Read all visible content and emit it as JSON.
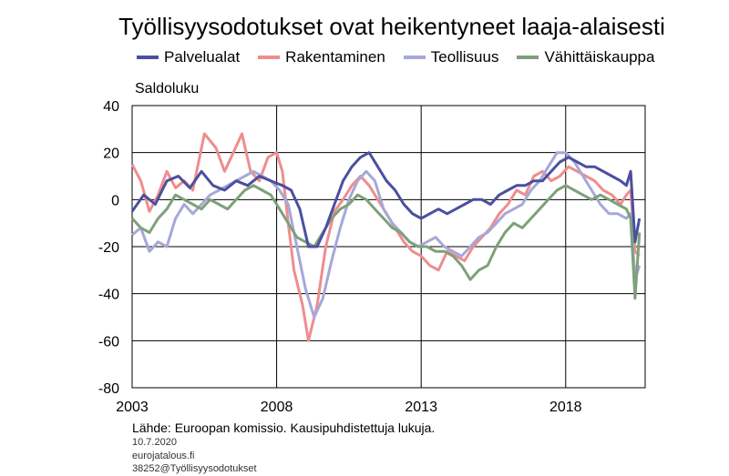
{
  "chart_data": {
    "type": "line",
    "title": "Työllisyysodotukset ovat heikentyneet laaja-alaisesti",
    "ylabel": "Saldoluku",
    "ylim": [
      -80,
      40
    ],
    "yticks": [
      "40",
      "20",
      "0",
      "-20",
      "-40",
      "-60",
      "-80"
    ],
    "ytick_values": [
      40,
      20,
      0,
      -20,
      -40,
      -60,
      -80
    ],
    "xlim": [
      2003,
      2020.75
    ],
    "xticks": [
      "2003",
      "2008",
      "2013",
      "2018"
    ],
    "xtick_values": [
      2003,
      2008,
      2013,
      2018
    ],
    "grid": true,
    "legend_position": "top",
    "series": [
      {
        "name": "Palvelualat",
        "color": "#4b4fa0",
        "points": [
          [
            2003.0,
            -5
          ],
          [
            2003.4,
            2
          ],
          [
            2003.8,
            -2
          ],
          [
            2004.2,
            8
          ],
          [
            2004.6,
            10
          ],
          [
            2005.0,
            5
          ],
          [
            2005.4,
            12
          ],
          [
            2005.8,
            6
          ],
          [
            2006.2,
            4
          ],
          [
            2006.6,
            8
          ],
          [
            2007.0,
            6
          ],
          [
            2007.4,
            10
          ],
          [
            2007.8,
            8
          ],
          [
            2008.2,
            6
          ],
          [
            2008.5,
            4
          ],
          [
            2008.8,
            -4
          ],
          [
            2009.1,
            -20
          ],
          [
            2009.4,
            -20
          ],
          [
            2009.7,
            -12
          ],
          [
            2010.0,
            -2
          ],
          [
            2010.3,
            8
          ],
          [
            2010.6,
            14
          ],
          [
            2010.9,
            18
          ],
          [
            2011.2,
            20
          ],
          [
            2011.5,
            14
          ],
          [
            2011.8,
            8
          ],
          [
            2012.1,
            4
          ],
          [
            2012.4,
            -2
          ],
          [
            2012.7,
            -6
          ],
          [
            2013.0,
            -8
          ],
          [
            2013.3,
            -6
          ],
          [
            2013.6,
            -4
          ],
          [
            2013.9,
            -6
          ],
          [
            2014.2,
            -4
          ],
          [
            2014.5,
            -2
          ],
          [
            2014.8,
            0
          ],
          [
            2015.1,
            0
          ],
          [
            2015.4,
            -2
          ],
          [
            2015.7,
            2
          ],
          [
            2016.0,
            4
          ],
          [
            2016.3,
            6
          ],
          [
            2016.6,
            6
          ],
          [
            2016.9,
            8
          ],
          [
            2017.2,
            8
          ],
          [
            2017.5,
            12
          ],
          [
            2017.8,
            16
          ],
          [
            2018.1,
            18
          ],
          [
            2018.4,
            16
          ],
          [
            2018.7,
            14
          ],
          [
            2019.0,
            14
          ],
          [
            2019.3,
            12
          ],
          [
            2019.6,
            10
          ],
          [
            2019.9,
            8
          ],
          [
            2020.1,
            6
          ],
          [
            2020.25,
            12
          ],
          [
            2020.4,
            -18
          ],
          [
            2020.55,
            -8
          ]
        ]
      },
      {
        "name": "Rakentaminen",
        "color": "#ef8d8e",
        "points": [
          [
            2003.0,
            15
          ],
          [
            2003.3,
            8
          ],
          [
            2003.6,
            -5
          ],
          [
            2003.9,
            2
          ],
          [
            2004.2,
            12
          ],
          [
            2004.5,
            5
          ],
          [
            2004.8,
            8
          ],
          [
            2005.1,
            4
          ],
          [
            2005.5,
            28
          ],
          [
            2005.9,
            22
          ],
          [
            2006.2,
            12
          ],
          [
            2006.5,
            20
          ],
          [
            2006.8,
            28
          ],
          [
            2007.1,
            12
          ],
          [
            2007.4,
            8
          ],
          [
            2007.7,
            18
          ],
          [
            2008.0,
            20
          ],
          [
            2008.2,
            12
          ],
          [
            2008.4,
            -10
          ],
          [
            2008.6,
            -30
          ],
          [
            2008.9,
            -45
          ],
          [
            2009.1,
            -60
          ],
          [
            2009.4,
            -45
          ],
          [
            2009.7,
            -20
          ],
          [
            2010.0,
            -5
          ],
          [
            2010.3,
            0
          ],
          [
            2010.6,
            6
          ],
          [
            2010.9,
            10
          ],
          [
            2011.2,
            6
          ],
          [
            2011.5,
            0
          ],
          [
            2011.8,
            -6
          ],
          [
            2012.1,
            -12
          ],
          [
            2012.4,
            -18
          ],
          [
            2012.7,
            -22
          ],
          [
            2013.0,
            -24
          ],
          [
            2013.3,
            -28
          ],
          [
            2013.6,
            -30
          ],
          [
            2013.9,
            -22
          ],
          [
            2014.2,
            -24
          ],
          [
            2014.5,
            -26
          ],
          [
            2014.8,
            -20
          ],
          [
            2015.1,
            -16
          ],
          [
            2015.4,
            -12
          ],
          [
            2015.7,
            -6
          ],
          [
            2016.0,
            -2
          ],
          [
            2016.3,
            4
          ],
          [
            2016.6,
            2
          ],
          [
            2016.9,
            10
          ],
          [
            2017.2,
            12
          ],
          [
            2017.5,
            8
          ],
          [
            2017.8,
            10
          ],
          [
            2018.1,
            14
          ],
          [
            2018.4,
            12
          ],
          [
            2018.7,
            10
          ],
          [
            2019.0,
            8
          ],
          [
            2019.3,
            4
          ],
          [
            2019.6,
            2
          ],
          [
            2019.9,
            -2
          ],
          [
            2020.1,
            2
          ],
          [
            2020.25,
            4
          ],
          [
            2020.4,
            -22
          ],
          [
            2020.55,
            -24
          ]
        ]
      },
      {
        "name": "Teollisuus",
        "color": "#a6a8d8",
        "points": [
          [
            2003.0,
            -15
          ],
          [
            2003.3,
            -12
          ],
          [
            2003.6,
            -22
          ],
          [
            2003.9,
            -18
          ],
          [
            2004.2,
            -20
          ],
          [
            2004.5,
            -8
          ],
          [
            2004.8,
            -2
          ],
          [
            2005.1,
            -6
          ],
          [
            2005.4,
            -2
          ],
          [
            2005.7,
            2
          ],
          [
            2006.0,
            4
          ],
          [
            2006.3,
            6
          ],
          [
            2006.6,
            8
          ],
          [
            2006.9,
            10
          ],
          [
            2007.2,
            12
          ],
          [
            2007.5,
            10
          ],
          [
            2007.8,
            8
          ],
          [
            2008.1,
            4
          ],
          [
            2008.4,
            -2
          ],
          [
            2008.7,
            -20
          ],
          [
            2009.0,
            -38
          ],
          [
            2009.3,
            -50
          ],
          [
            2009.6,
            -42
          ],
          [
            2009.9,
            -26
          ],
          [
            2010.2,
            -12
          ],
          [
            2010.5,
            0
          ],
          [
            2010.8,
            8
          ],
          [
            2011.1,
            12
          ],
          [
            2011.4,
            8
          ],
          [
            2011.7,
            -4
          ],
          [
            2012.0,
            -10
          ],
          [
            2012.3,
            -14
          ],
          [
            2012.6,
            -18
          ],
          [
            2012.9,
            -20
          ],
          [
            2013.2,
            -18
          ],
          [
            2013.5,
            -16
          ],
          [
            2013.8,
            -20
          ],
          [
            2014.1,
            -22
          ],
          [
            2014.4,
            -24
          ],
          [
            2014.7,
            -20
          ],
          [
            2015.0,
            -16
          ],
          [
            2015.3,
            -14
          ],
          [
            2015.6,
            -10
          ],
          [
            2015.9,
            -6
          ],
          [
            2016.2,
            -4
          ],
          [
            2016.5,
            -2
          ],
          [
            2016.8,
            4
          ],
          [
            2017.1,
            8
          ],
          [
            2017.4,
            14
          ],
          [
            2017.7,
            20
          ],
          [
            2018.0,
            20
          ],
          [
            2018.3,
            16
          ],
          [
            2018.6,
            10
          ],
          [
            2018.9,
            4
          ],
          [
            2019.2,
            -2
          ],
          [
            2019.5,
            -6
          ],
          [
            2019.8,
            -6
          ],
          [
            2020.1,
            -8
          ],
          [
            2020.25,
            -6
          ],
          [
            2020.4,
            -34
          ],
          [
            2020.55,
            -28
          ]
        ]
      },
      {
        "name": "Vähittäiskauppa",
        "color": "#7ea07a",
        "points": [
          [
            2003.0,
            -8
          ],
          [
            2003.3,
            -12
          ],
          [
            2003.6,
            -14
          ],
          [
            2003.9,
            -8
          ],
          [
            2004.2,
            -4
          ],
          [
            2004.5,
            2
          ],
          [
            2004.8,
            0
          ],
          [
            2005.1,
            -2
          ],
          [
            2005.4,
            -4
          ],
          [
            2005.7,
            0
          ],
          [
            2006.0,
            -2
          ],
          [
            2006.3,
            -4
          ],
          [
            2006.6,
            0
          ],
          [
            2006.9,
            4
          ],
          [
            2007.2,
            6
          ],
          [
            2007.5,
            4
          ],
          [
            2007.8,
            2
          ],
          [
            2008.1,
            -4
          ],
          [
            2008.4,
            -10
          ],
          [
            2008.7,
            -16
          ],
          [
            2009.0,
            -18
          ],
          [
            2009.3,
            -20
          ],
          [
            2009.6,
            -14
          ],
          [
            2009.9,
            -8
          ],
          [
            2010.2,
            -4
          ],
          [
            2010.5,
            -2
          ],
          [
            2010.8,
            2
          ],
          [
            2011.1,
            0
          ],
          [
            2011.4,
            -4
          ],
          [
            2011.7,
            -8
          ],
          [
            2012.0,
            -12
          ],
          [
            2012.3,
            -14
          ],
          [
            2012.6,
            -18
          ],
          [
            2012.9,
            -20
          ],
          [
            2013.2,
            -20
          ],
          [
            2013.5,
            -22
          ],
          [
            2013.8,
            -22
          ],
          [
            2014.1,
            -24
          ],
          [
            2014.4,
            -28
          ],
          [
            2014.7,
            -34
          ],
          [
            2015.0,
            -30
          ],
          [
            2015.3,
            -28
          ],
          [
            2015.6,
            -20
          ],
          [
            2015.9,
            -14
          ],
          [
            2016.2,
            -10
          ],
          [
            2016.5,
            -12
          ],
          [
            2016.8,
            -8
          ],
          [
            2017.1,
            -4
          ],
          [
            2017.4,
            0
          ],
          [
            2017.7,
            4
          ],
          [
            2018.0,
            6
          ],
          [
            2018.3,
            4
          ],
          [
            2018.6,
            2
          ],
          [
            2018.9,
            0
          ],
          [
            2019.2,
            2
          ],
          [
            2019.5,
            0
          ],
          [
            2019.8,
            -2
          ],
          [
            2020.1,
            -4
          ],
          [
            2020.25,
            -8
          ],
          [
            2020.4,
            -42
          ],
          [
            2020.55,
            -14
          ]
        ]
      }
    ]
  },
  "footer": {
    "source": "Lähde: Euroopan komissio. Kausipuhdistettuja lukuja.",
    "date": "10.7.2020",
    "site": "eurojatalous.fi",
    "id": "38252@Työllisyysodotukset"
  }
}
